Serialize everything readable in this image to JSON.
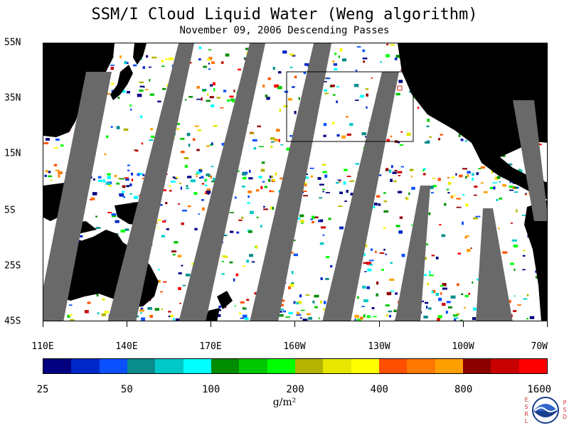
{
  "header": {
    "title": "SSM/I Cloud Liquid Water (Weng algorithm)",
    "subtitle": "November 09, 2006  Descending Passes"
  },
  "map": {
    "latitude_labels": [
      "55N",
      "35N",
      "15N",
      "5S",
      "25S",
      "45S"
    ],
    "longitude_labels": [
      "110E",
      "140E",
      "170E",
      "160W",
      "130W",
      "100W",
      "70W"
    ],
    "colors": {
      "land": "#000000",
      "no_data_swath": "#696969",
      "clear_ocean": "#ffffff",
      "region_box": "#000000"
    }
  },
  "colorbar": {
    "colors": [
      "#000080",
      "#0028c8",
      "#0a50ff",
      "#0a8c8c",
      "#00c8c8",
      "#00ffff",
      "#008c00",
      "#00c800",
      "#00ff00",
      "#b4b400",
      "#e6e600",
      "#ffff00",
      "#ff5000",
      "#ff7800",
      "#ffa000",
      "#8c0000",
      "#c80000",
      "#ff0000"
    ],
    "tick_labels": [
      "25",
      "50",
      "100",
      "200",
      "400",
      "800",
      "1600"
    ],
    "units": "g/m²"
  },
  "logo": {
    "name": "NOAA",
    "left_letters": [
      "E",
      "S",
      "R",
      "L"
    ],
    "right_letters": [
      "P",
      "S",
      "D"
    ]
  }
}
